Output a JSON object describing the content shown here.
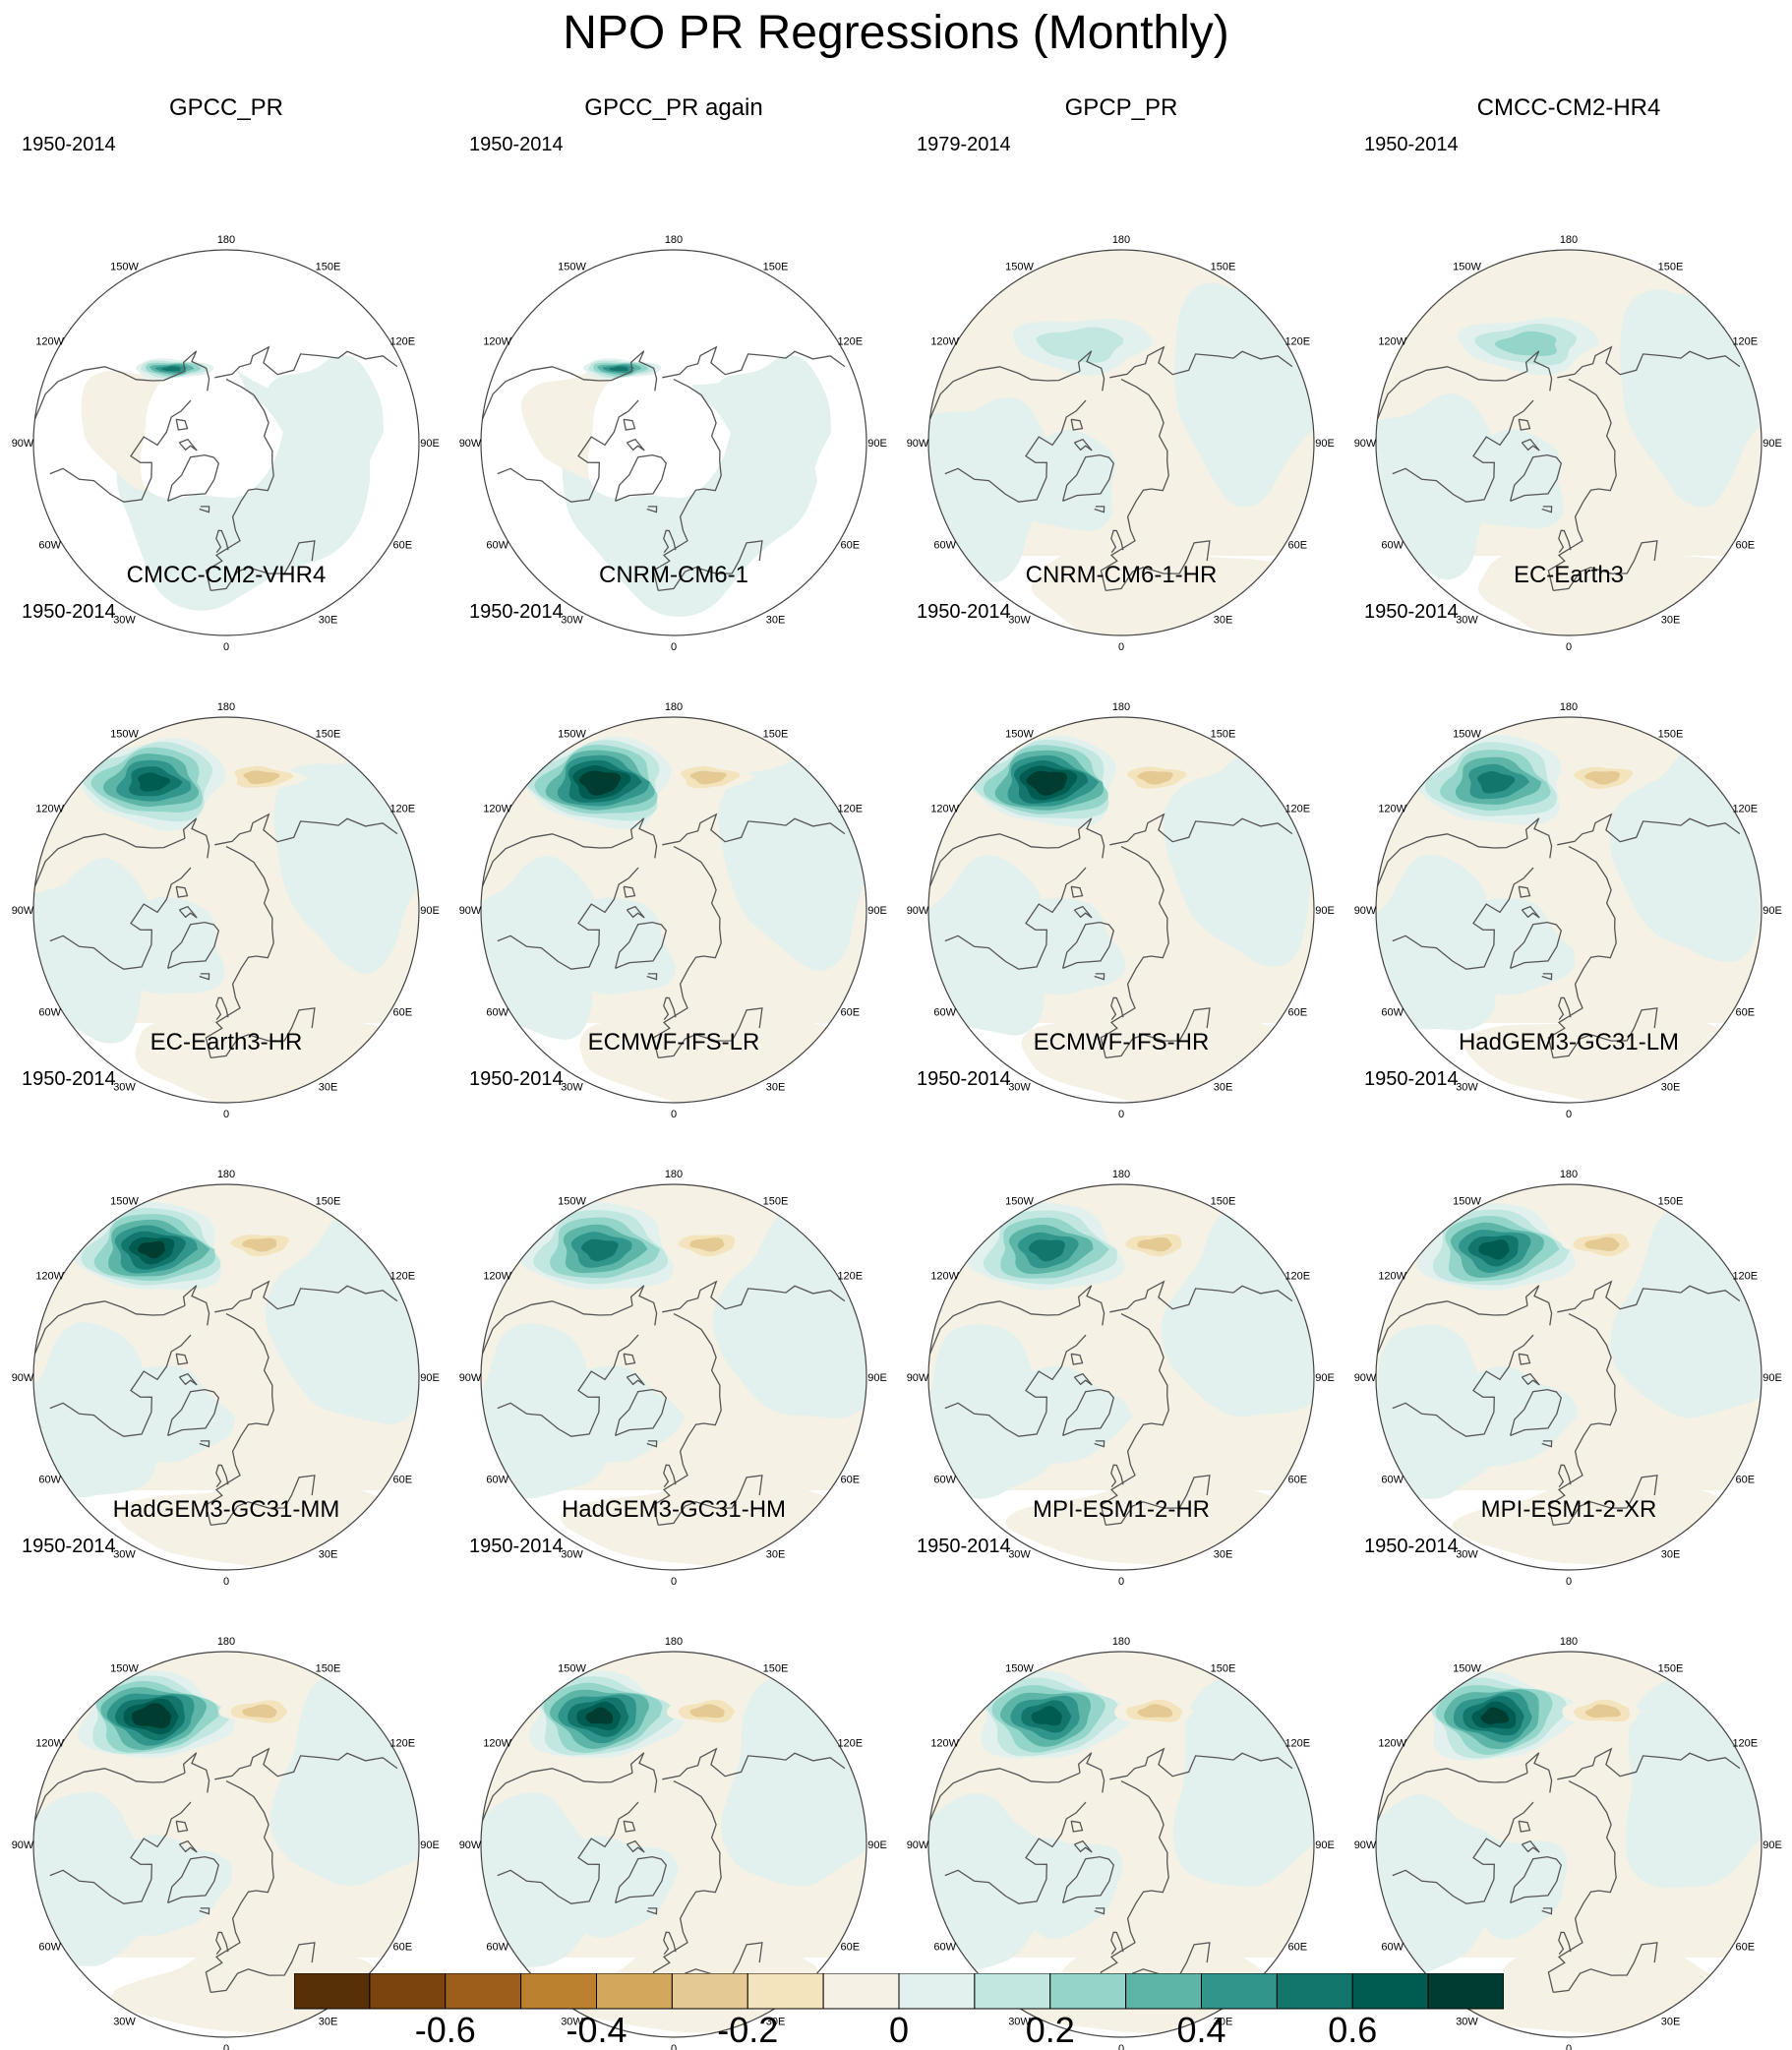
{
  "title": "NPO PR Regressions (Monthly)",
  "map": {
    "projection": "north-polar-stereographic",
    "center_longitude_bottom": 0,
    "longitude_labels": [
      "180",
      "150E",
      "120E",
      "90E",
      "60E",
      "30E",
      "0",
      "30W",
      "60W",
      "90W",
      "120W",
      "150W"
    ]
  },
  "panels": [
    {
      "title": "GPCC_PR",
      "period": "1950-2014",
      "pattern": "obs-land",
      "amp": 0.2
    },
    {
      "title": "GPCC_PR again",
      "period": "1950-2014",
      "pattern": "obs-land",
      "amp": 0.2
    },
    {
      "title": "GPCP_PR",
      "period": "1979-2014",
      "pattern": "weak",
      "amp": 0.45
    },
    {
      "title": "CMCC-CM2-HR4",
      "period": "1950-2014",
      "pattern": "weak",
      "amp": 0.5
    },
    {
      "title": "CMCC-CM2-VHR4",
      "period": "1950-2014",
      "pattern": "model",
      "amp": 0.7
    },
    {
      "title": "CNRM-CM6-1",
      "period": "1950-2014",
      "pattern": "model",
      "amp": 0.85
    },
    {
      "title": "CNRM-CM6-1-HR",
      "period": "1950-2014",
      "pattern": "model",
      "amp": 0.85
    },
    {
      "title": "EC-Earth3",
      "period": "1950-2014",
      "pattern": "model",
      "amp": 0.6
    },
    {
      "title": "EC-Earth3-HR",
      "period": "1950-2014",
      "pattern": "model",
      "amp": 0.8
    },
    {
      "title": "ECMWF-IFS-LR",
      "period": "1950-2014",
      "pattern": "model",
      "amp": 0.6
    },
    {
      "title": "ECMWF-IFS-HR",
      "period": "1950-2014",
      "pattern": "model",
      "amp": 0.6
    },
    {
      "title": "HadGEM3-GC31-LM",
      "period": "1950-2014",
      "pattern": "model",
      "amp": 0.7
    },
    {
      "title": "HadGEM3-GC31-MM",
      "period": "1950-2014",
      "pattern": "model",
      "amp": 0.85
    },
    {
      "title": "HadGEM3-GC31-HM",
      "period": "1950-2014",
      "pattern": "model",
      "amp": 0.8
    },
    {
      "title": "MPI-ESM1-2-HR",
      "period": "1950-2014",
      "pattern": "model",
      "amp": 0.7
    },
    {
      "title": "MPI-ESM1-2-XR",
      "period": "1950-2014",
      "pattern": "model",
      "amp": 0.75
    }
  ],
  "colorbar": {
    "colors": [
      "#573008",
      "#7b440e",
      "#9d5e1b",
      "#bb812f",
      "#d3a85d",
      "#e5c992",
      "#f4e4bd",
      "#f5f1e4",
      "#e3f1ee",
      "#c1e7e0",
      "#94d5ca",
      "#5db5a8",
      "#30958b",
      "#12766c",
      "#005b50",
      "#003c30"
    ],
    "labels": [
      {
        "text": "-0.6",
        "boundary": 2
      },
      {
        "text": "-0.4",
        "boundary": 4
      },
      {
        "text": "-0.2",
        "boundary": 6
      },
      {
        "text": "0",
        "boundary": 8
      },
      {
        "text": "0.2",
        "boundary": 10
      },
      {
        "text": "0.4",
        "boundary": 12
      },
      {
        "text": "0.6",
        "boundary": 14
      }
    ]
  }
}
